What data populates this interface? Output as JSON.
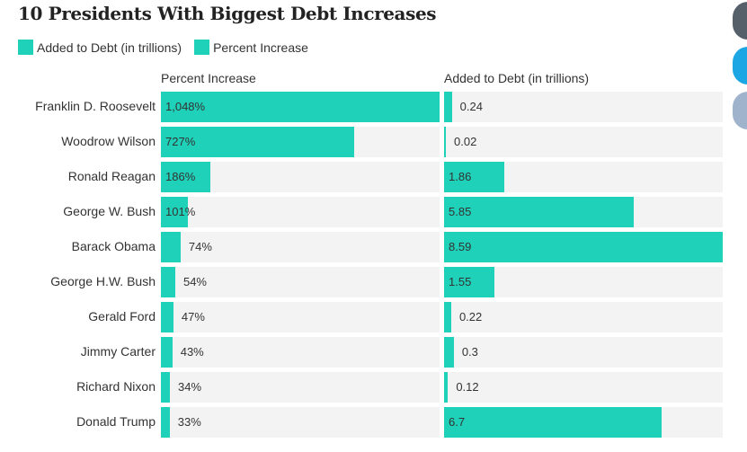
{
  "title": "10 Presidents With Biggest Debt Increases",
  "legend": [
    {
      "label": "Added to Debt (in trillions)",
      "color": "#1fd1b9"
    },
    {
      "label": "Percent Increase",
      "color": "#1fd1b9"
    }
  ],
  "social_icons": [
    "share-icon",
    "facebook-icon",
    "twitter-icon"
  ],
  "social_colors": [
    "#56606b",
    "#1ca6e3",
    "#9fb3cc"
  ],
  "chart_data": {
    "type": "bar",
    "orientation": "horizontal",
    "categories": [
      "Franklin D. Roosevelt",
      "Woodrow Wilson",
      "Ronald Reagan",
      "George W. Bush",
      "Barack Obama",
      "George H.W. Bush",
      "Gerald Ford",
      "Jimmy Carter",
      "Richard Nixon",
      "Donald Trump"
    ],
    "series": [
      {
        "name": "Percent Increase",
        "values": [
          1048,
          727,
          186,
          101,
          74,
          54,
          47,
          43,
          34,
          33
        ],
        "labels": [
          "1,048%",
          "727%",
          "186%",
          "101%",
          "74%",
          "54%",
          "47%",
          "43%",
          "34%",
          "33%"
        ],
        "xlim": [
          0,
          1048
        ]
      },
      {
        "name": "Added to Debt (in trillions)",
        "values": [
          0.24,
          0.02,
          1.86,
          5.85,
          8.59,
          1.55,
          0.22,
          0.3,
          0.12,
          6.7
        ],
        "labels": [
          "0.24",
          "0.02",
          "1.86",
          "5.85",
          "8.59",
          "1.55",
          "0.22",
          "0.3",
          "0.12",
          "6.7"
        ],
        "xlim": [
          0,
          8.59
        ]
      }
    ],
    "bar_color": "#1fd1b9",
    "track_color": "#f3f3f3",
    "grid": false
  }
}
